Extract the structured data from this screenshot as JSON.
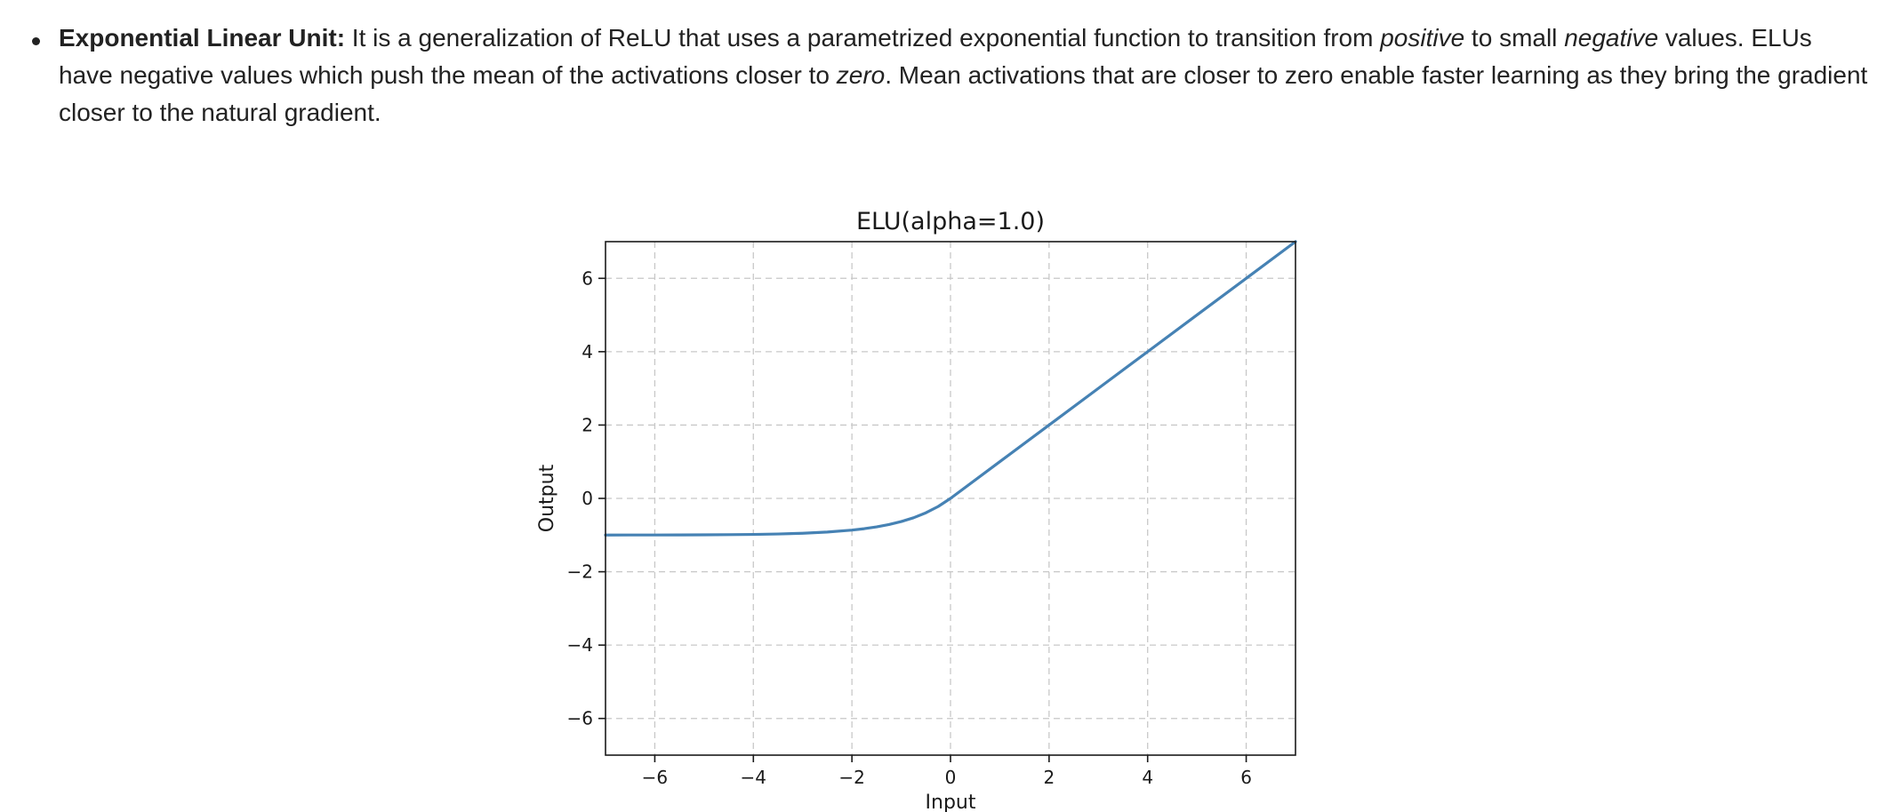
{
  "doc": {
    "bullet": {
      "term": "Exponential Linear Unit:",
      "t1": " It is a generalization of ReLU that uses a parametrized exponential function to transition from ",
      "em1": "positive",
      "t2": " to small ",
      "em2": "negative",
      "t3": " values. ELUs have negative values which push the mean of the activations closer to ",
      "em3": "zero",
      "t4": ". Mean activations that are closer to zero enable faster learning as they bring the gradient closer to the natural gradient."
    }
  },
  "chart_data": {
    "type": "line",
    "title": "ELU(alpha=1.0)",
    "xlabel": "Input",
    "ylabel": "Output",
    "xlim": [
      -7,
      7
    ],
    "ylim": [
      -7,
      7
    ],
    "xticks": [
      -6,
      -4,
      -2,
      0,
      2,
      4,
      6
    ],
    "yticks": [
      -6,
      -4,
      -2,
      0,
      2,
      4,
      6
    ],
    "xtick_labels": [
      "−6",
      "−4",
      "−2",
      "0",
      "2",
      "4",
      "6"
    ],
    "ytick_labels": [
      "−6",
      "−4",
      "−2",
      "0",
      "2",
      "4",
      "6"
    ],
    "grid": true,
    "line_color": "#4682b4",
    "series": [
      {
        "x": [
          -7,
          -6.5,
          -6,
          -5.5,
          -5,
          -4.5,
          -4,
          -3.5,
          -3,
          -2.5,
          -2,
          -1.75,
          -1.5,
          -1.25,
          -1,
          -0.75,
          -0.5,
          -0.25,
          0,
          1,
          2,
          3,
          4,
          5,
          6,
          7
        ],
        "values": [
          -0.999,
          -0.998,
          -0.998,
          -0.996,
          -0.993,
          -0.989,
          -0.982,
          -0.97,
          -0.95,
          -0.918,
          -0.865,
          -0.826,
          -0.777,
          -0.713,
          -0.632,
          -0.528,
          -0.393,
          -0.221,
          0,
          1,
          2,
          3,
          4,
          5,
          6,
          7
        ]
      }
    ]
  }
}
